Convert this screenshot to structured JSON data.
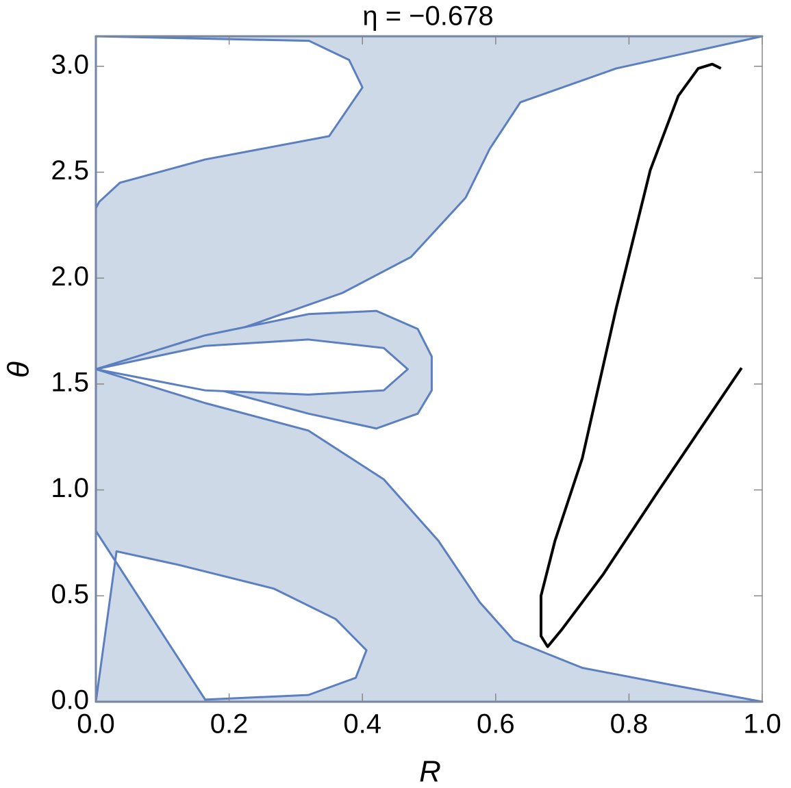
{
  "chart_data": {
    "type": "region",
    "title": "η = −0.678",
    "x_label": "R",
    "y_label": "θ",
    "xlim": [
      0,
      1
    ],
    "ylim": [
      0,
      3.1416
    ],
    "xticks": [
      {
        "value": 0,
        "label": "0.0"
      },
      0.2,
      0.4,
      0.6,
      0.8,
      {
        "value": 1,
        "label": "1.0"
      }
    ],
    "yticks": [
      {
        "value": 0,
        "label": "0.0"
      },
      0.5,
      {
        "value": 1,
        "label": "1.0"
      },
      1.5,
      {
        "value": 2,
        "label": "2.0"
      },
      2.5,
      {
        "value": 3,
        "label": "3.0"
      }
    ],
    "series": [
      {
        "fill": "#cdd9e7",
        "color": "#5b7fbf",
        "x": [
          0,
          1,
          0.863,
          0.73,
          0.627,
          0.576,
          0.514,
          0.432,
          0.319,
          0.164,
          0,
          0.216,
          0.37,
          0.473,
          0.555,
          0.591,
          0.637,
          0.781,
          1,
          0
        ],
        "values": [
          0,
          0,
          0.08,
          0.16,
          0.29,
          0.47,
          0.76,
          1.05,
          1.28,
          1.41,
          1.57,
          1.76,
          1.93,
          2.1,
          2.38,
          2.61,
          2.83,
          2.99,
          3.1416,
          3.1416
        ]
      },
      {
        "fill": "#ffffff",
        "color": "#5b7fbf",
        "x": [
          0,
          0.005,
          0.036,
          0.164,
          0.35,
          0.4,
          0.38,
          0.32,
          0
        ],
        "values": [
          2.33,
          2.36,
          2.45,
          2.56,
          2.67,
          2.9,
          3.03,
          3.12,
          3.1416
        ]
      },
      {
        "fill": "#ffffff",
        "color": "#5b7fbf",
        "x": [
          0,
          0,
          0.031,
          0.123,
          0.267,
          0.36,
          0.406,
          0.39,
          0.319,
          0.164
        ],
        "values": [
          0.806,
          0,
          0.71,
          0.647,
          0.534,
          0.39,
          0.243,
          0.113,
          0.032,
          0.01
        ]
      },
      {
        "fill": "#cdd9e7",
        "color": "#5b7fbf",
        "x": [
          0,
          0.164,
          0.319,
          0.421,
          0.483,
          0.504,
          0.504,
          0.483,
          0.421,
          0.319,
          0.164
        ],
        "values": [
          1.57,
          1.73,
          1.83,
          1.845,
          1.76,
          1.63,
          1.47,
          1.36,
          1.29,
          1.36,
          1.49
        ]
      },
      {
        "fill": "#ffffff",
        "color": "#5b7fbf",
        "x": [
          0,
          0.164,
          0.319,
          0.432,
          0.468,
          0.432,
          0.319,
          0.164
        ],
        "values": [
          1.57,
          1.68,
          1.71,
          1.67,
          1.57,
          1.47,
          1.45,
          1.47
        ]
      },
      {
        "fill": null,
        "color": "#000000",
        "x": [
          0.969,
          0.843,
          0.761,
          0.699,
          0.678,
          0.668,
          0.668,
          0.689,
          0.73,
          0.781,
          0.832,
          0.874,
          0.904,
          0.925,
          0.938
        ],
        "values": [
          1.576,
          0.99,
          0.6,
          0.34,
          0.26,
          0.31,
          0.5,
          0.76,
          1.15,
          1.86,
          2.51,
          2.86,
          2.99,
          3.01,
          2.99
        ]
      }
    ]
  }
}
